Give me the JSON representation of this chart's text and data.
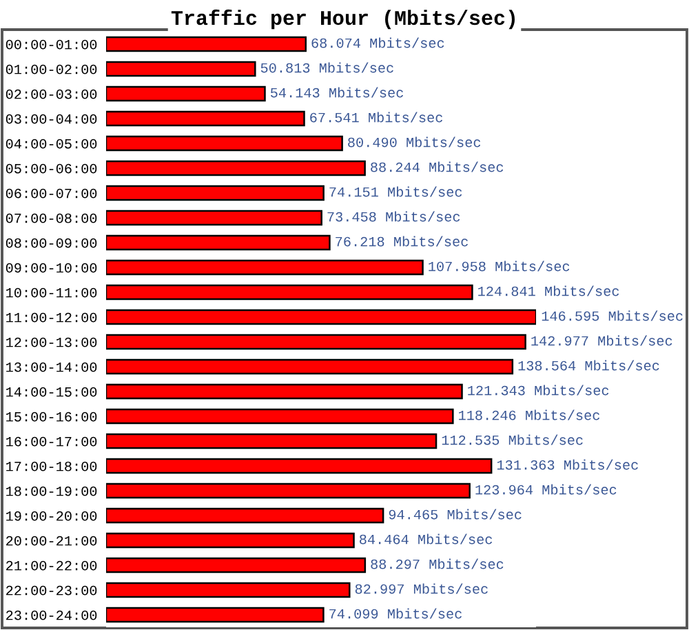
{
  "chart_data": {
    "type": "bar",
    "orientation": "horizontal",
    "title": "Traffic per Hour (Mbits/sec)",
    "categories": [
      "00:00-01:00",
      "01:00-02:00",
      "02:00-03:00",
      "03:00-04:00",
      "04:00-05:00",
      "05:00-06:00",
      "06:00-07:00",
      "07:00-08:00",
      "08:00-09:00",
      "09:00-10:00",
      "10:00-11:00",
      "11:00-12:00",
      "12:00-13:00",
      "13:00-14:00",
      "14:00-15:00",
      "15:00-16:00",
      "16:00-17:00",
      "17:00-18:00",
      "18:00-19:00",
      "19:00-20:00",
      "20:00-21:00",
      "21:00-22:00",
      "22:00-23:00",
      "23:00-24:00"
    ],
    "values": [
      68.074,
      50.813,
      54.143,
      67.541,
      80.49,
      88.244,
      74.151,
      73.458,
      76.218,
      107.958,
      124.841,
      146.595,
      142.977,
      138.564,
      121.343,
      118.246,
      112.535,
      131.363,
      123.964,
      94.465,
      84.464,
      88.297,
      82.997,
      74.099
    ],
    "value_labels": [
      "68.074 Mbits/sec",
      "50.813 Mbits/sec",
      "54.143 Mbits/sec",
      "67.541 Mbits/sec",
      "80.490 Mbits/sec",
      "88.244 Mbits/sec",
      "74.151 Mbits/sec",
      "73.458 Mbits/sec",
      "76.218 Mbits/sec",
      "107.958 Mbits/sec",
      "124.841 Mbits/sec",
      "146.595 Mbits/sec",
      "142.977 Mbits/sec",
      "138.564 Mbits/sec",
      "121.343 Mbits/sec",
      "118.246 Mbits/sec",
      "112.535 Mbits/sec",
      "131.363 Mbits/sec",
      "123.964 Mbits/sec",
      "94.465 Mbits/sec",
      "84.464 Mbits/sec",
      "88.297 Mbits/sec",
      "82.997 Mbits/sec",
      "74.099 Mbits/sec"
    ],
    "color": "#ff0000",
    "tick_labels": "y",
    "grid": false,
    "legend": false
  }
}
